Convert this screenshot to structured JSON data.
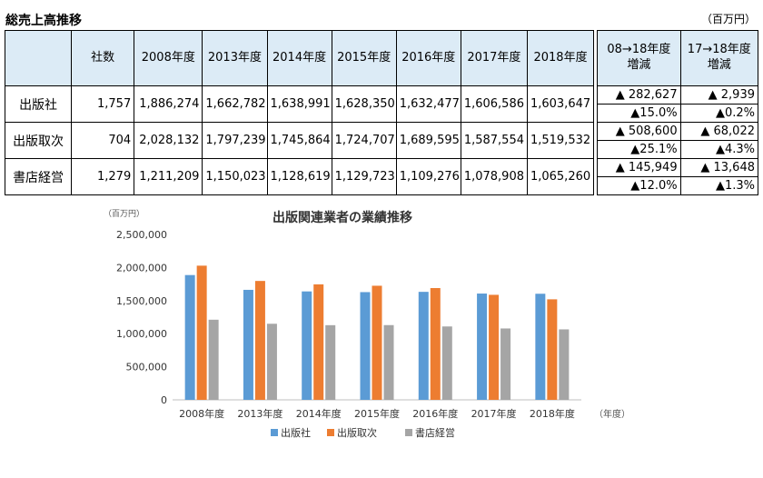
{
  "table": {
    "title": "総売上高推移",
    "unit": "（百万円）",
    "headers": {
      "companies": "社数",
      "years": [
        "2008年度",
        "2013年度",
        "2014年度",
        "2015年度",
        "2016年度",
        "2017年度",
        "2018年度"
      ],
      "change_08_18": [
        "08→18年度",
        "増減"
      ],
      "change_17_18": [
        "17→18年度",
        "増減"
      ]
    },
    "rows": [
      {
        "label": "出版社",
        "companies": "1,757",
        "values": [
          "1,886,274",
          "1,662,782",
          "1,638,991",
          "1,628,350",
          "1,632,477",
          "1,606,586",
          "1,603,647"
        ],
        "change_08_18": [
          "▲ 282,627",
          "▲15.0%"
        ],
        "change_17_18": [
          "▲ 2,939",
          "▲0.2%"
        ]
      },
      {
        "label": "出版取次",
        "companies": "704",
        "values": [
          "2,028,132",
          "1,797,239",
          "1,745,864",
          "1,724,707",
          "1,689,595",
          "1,587,554",
          "1,519,532"
        ],
        "change_08_18": [
          "▲ 508,600",
          "▲25.1%"
        ],
        "change_17_18": [
          "▲ 68,022",
          "▲4.3%"
        ]
      },
      {
        "label": "書店経営",
        "companies": "1,279",
        "values": [
          "1,211,209",
          "1,150,023",
          "1,128,619",
          "1,129,723",
          "1,109,276",
          "1,078,908",
          "1,065,260"
        ],
        "change_08_18": [
          "▲ 145,949",
          "▲12.0%"
        ],
        "change_17_18": [
          "▲ 13,648",
          "▲1.3%"
        ]
      }
    ]
  },
  "chart_data": {
    "type": "bar",
    "title": "出版関連業者の業績推移",
    "ylabel": "（百万円）",
    "xlabel": "（年度）",
    "categories": [
      "2008年度",
      "2013年度",
      "2014年度",
      "2015年度",
      "2016年度",
      "2017年度",
      "2018年度"
    ],
    "series": [
      {
        "name": "出版社",
        "color": "#5b9bd5",
        "values": [
          1886274,
          1662782,
          1638991,
          1628350,
          1632477,
          1606586,
          1603647
        ]
      },
      {
        "name": "出版取次",
        "color": "#ed7d31",
        "values": [
          2028132,
          1797239,
          1745864,
          1724707,
          1689595,
          1587554,
          1519532
        ]
      },
      {
        "name": "書店経営",
        "color": "#a5a5a5",
        "values": [
          1211209,
          1150023,
          1128619,
          1129723,
          1109276,
          1078908,
          1065260
        ]
      }
    ],
    "ylim": [
      0,
      2500000
    ],
    "yticks": [
      "0",
      "500,000",
      "1,000,000",
      "1,500,000",
      "2,000,000",
      "2,500,000"
    ],
    "grid": false,
    "legend": "bottom"
  }
}
